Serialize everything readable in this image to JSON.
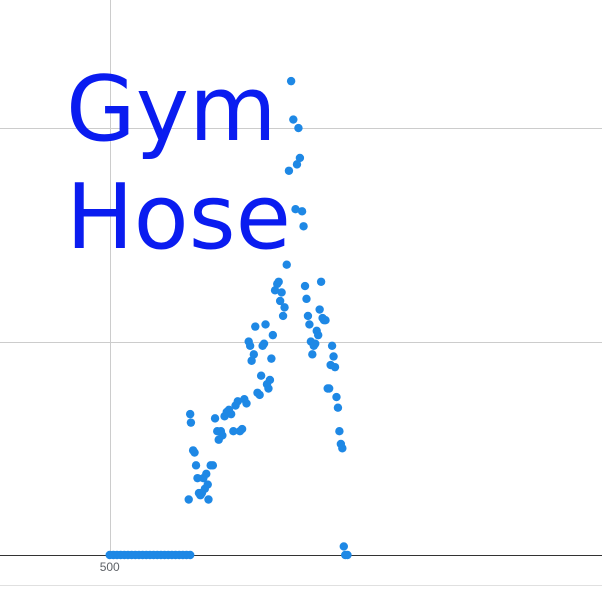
{
  "overlay_text": {
    "line1": "Gym",
    "line2": "Hose"
  },
  "colors": {
    "point": "#1e88e5",
    "grid": "#cccccc",
    "axis": "#333333",
    "text": "#5f6368",
    "overlay": "#0a1cf0"
  },
  "chart_data": {
    "type": "scatter",
    "title": "",
    "xlabel": "",
    "ylabel": "",
    "x_tick_labels": [
      "500"
    ],
    "x_ticks": [
      500
    ],
    "xlim": [
      350,
      1173
    ],
    "ylim": [
      0,
      2.6
    ],
    "y_gridlines": [
      0,
      1,
      2
    ],
    "grid": true,
    "legend": "none",
    "series": [
      {
        "name": "",
        "points": [
          [
            500,
            0.0
          ],
          [
            505,
            0.0
          ],
          [
            510,
            0.0
          ],
          [
            515,
            0.0
          ],
          [
            520,
            0.0
          ],
          [
            525,
            0.0
          ],
          [
            530,
            0.0
          ],
          [
            535,
            0.0
          ],
          [
            540,
            0.0
          ],
          [
            545,
            0.0
          ],
          [
            550,
            0.0
          ],
          [
            555,
            0.0
          ],
          [
            560,
            0.0
          ],
          [
            565,
            0.0
          ],
          [
            570,
            0.0
          ],
          [
            575,
            0.0
          ],
          [
            580,
            0.0
          ],
          [
            585,
            0.0
          ],
          [
            590,
            0.0
          ],
          [
            595,
            0.0
          ],
          [
            600,
            0.0
          ],
          [
            605,
            0.0
          ],
          [
            610,
            0.0
          ],
          [
            608,
            0.26
          ],
          [
            610,
            0.66
          ],
          [
            611,
            0.62
          ],
          [
            614,
            0.49
          ],
          [
            616,
            0.48
          ],
          [
            618,
            0.42
          ],
          [
            620,
            0.36
          ],
          [
            622,
            0.29
          ],
          [
            624,
            0.28
          ],
          [
            626,
            0.29
          ],
          [
            628,
            0.36
          ],
          [
            630,
            0.31
          ],
          [
            632,
            0.38
          ],
          [
            634,
            0.33
          ],
          [
            635,
            0.26
          ],
          [
            638,
            0.42
          ],
          [
            641,
            0.42
          ],
          [
            644,
            0.64
          ],
          [
            647,
            0.58
          ],
          [
            649,
            0.54
          ],
          [
            652,
            0.58
          ],
          [
            654,
            0.56
          ],
          [
            657,
            0.65
          ],
          [
            660,
            0.67
          ],
          [
            663,
            0.68
          ],
          [
            666,
            0.66
          ],
          [
            669,
            0.58
          ],
          [
            672,
            0.7
          ],
          [
            675,
            0.72
          ],
          [
            678,
            0.58
          ],
          [
            681,
            0.59
          ],
          [
            684,
            0.73
          ],
          [
            687,
            0.71
          ],
          [
            690,
            1.0
          ],
          [
            692,
            0.98
          ],
          [
            694,
            0.91
          ],
          [
            697,
            0.94
          ],
          [
            699,
            1.07
          ],
          [
            702,
            0.76
          ],
          [
            705,
            0.75
          ],
          [
            707,
            0.84
          ],
          [
            709,
            0.98
          ],
          [
            711,
            0.99
          ],
          [
            713,
            1.08
          ],
          [
            715,
            0.8
          ],
          [
            717,
            0.78
          ],
          [
            719,
            0.82
          ],
          [
            721,
            0.92
          ],
          [
            723,
            1.03
          ],
          [
            726,
            1.24
          ],
          [
            729,
            1.27
          ],
          [
            731,
            1.28
          ],
          [
            733,
            1.19
          ],
          [
            735,
            1.23
          ],
          [
            737,
            1.12
          ],
          [
            739,
            1.16
          ],
          [
            742,
            1.36
          ],
          [
            745,
            1.8
          ],
          [
            748,
            2.22
          ],
          [
            751,
            2.04
          ],
          [
            754,
            1.62
          ],
          [
            756,
            1.83
          ],
          [
            758,
            2.0
          ],
          [
            760,
            1.86
          ],
          [
            763,
            1.61
          ],
          [
            765,
            1.54
          ],
          [
            767,
            1.26
          ],
          [
            769,
            1.2
          ],
          [
            771,
            1.12
          ],
          [
            773,
            1.08
          ],
          [
            775,
            1.0
          ],
          [
            777,
            0.94
          ],
          [
            779,
            0.98
          ],
          [
            781,
            0.99
          ],
          [
            783,
            1.05
          ],
          [
            785,
            1.03
          ],
          [
            787,
            1.15
          ],
          [
            789,
            1.28
          ],
          [
            791,
            1.11
          ],
          [
            793,
            1.1
          ],
          [
            795,
            1.1
          ],
          [
            798,
            0.78
          ],
          [
            800,
            0.78
          ],
          [
            802,
            0.89
          ],
          [
            804,
            0.98
          ],
          [
            806,
            0.93
          ],
          [
            808,
            0.88
          ],
          [
            810,
            0.74
          ],
          [
            812,
            0.69
          ],
          [
            814,
            0.58
          ],
          [
            816,
            0.52
          ],
          [
            818,
            0.5
          ],
          [
            820,
            0.04
          ],
          [
            822,
            0.0
          ],
          [
            825,
            0.0
          ]
        ]
      }
    ]
  }
}
